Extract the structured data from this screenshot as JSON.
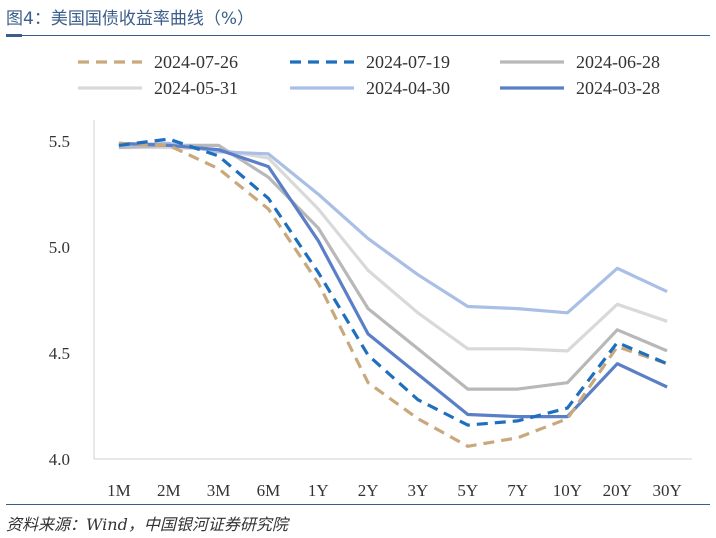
{
  "title": "图4：美国国债收益率曲线（%）",
  "source": "资料来源：Wind，中国银河证券研究院",
  "chart_data": {
    "type": "line",
    "title": "美国国债收益率曲线（%）",
    "xlabel": "",
    "ylabel": "",
    "ylim": [
      4.0,
      5.5
    ],
    "yticks": [
      "4.0",
      "4.5",
      "5.0",
      "5.5"
    ],
    "ytick_values": [
      4.0,
      4.5,
      5.0,
      5.5
    ],
    "legend_position": "top",
    "categories": [
      "1M",
      "2M",
      "3M",
      "6M",
      "1Y",
      "2Y",
      "3Y",
      "5Y",
      "7Y",
      "10Y",
      "20Y",
      "30Y"
    ],
    "series": [
      {
        "name": "2024-07-26",
        "color": "#c9a87c",
        "style": "dashed",
        "values": [
          5.49,
          5.48,
          5.37,
          5.18,
          4.83,
          4.36,
          4.19,
          4.06,
          4.1,
          4.19,
          4.53,
          4.45
        ]
      },
      {
        "name": "2024-07-19",
        "color": "#1f6fbf",
        "style": "dashed",
        "values": [
          5.48,
          5.51,
          5.43,
          5.23,
          4.88,
          4.49,
          4.28,
          4.16,
          4.18,
          4.24,
          4.55,
          4.45
        ]
      },
      {
        "name": "2024-06-28",
        "color": "#b8b8b8",
        "style": "solid",
        "values": [
          5.47,
          5.48,
          5.48,
          5.33,
          5.09,
          4.71,
          4.52,
          4.33,
          4.33,
          4.36,
          4.61,
          4.51
        ]
      },
      {
        "name": "2024-05-31",
        "color": "#d9d9d9",
        "style": "solid",
        "values": [
          5.47,
          5.47,
          5.46,
          5.42,
          5.18,
          4.89,
          4.69,
          4.52,
          4.52,
          4.51,
          4.73,
          4.65
        ]
      },
      {
        "name": "2024-04-30",
        "color": "#a9bfe6",
        "style": "solid",
        "values": [
          5.48,
          5.49,
          5.45,
          5.44,
          5.25,
          5.04,
          4.87,
          4.72,
          4.71,
          4.69,
          4.9,
          4.79
        ]
      },
      {
        "name": "2024-03-28",
        "color": "#5b7fc7",
        "style": "solid",
        "values": [
          5.49,
          5.48,
          5.46,
          5.38,
          5.03,
          4.59,
          4.4,
          4.21,
          4.2,
          4.2,
          4.45,
          4.34
        ]
      }
    ]
  }
}
